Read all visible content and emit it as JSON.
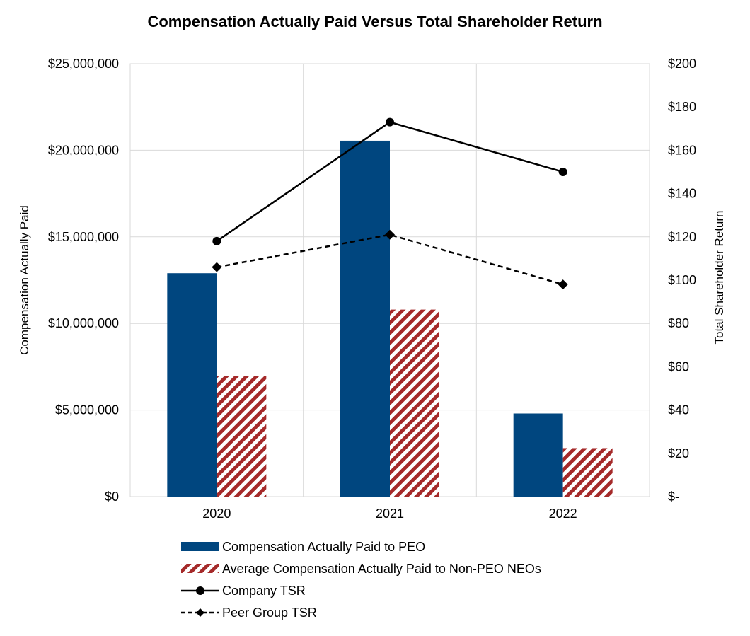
{
  "chart_data": {
    "type": "bar",
    "title": "Compensation Actually Paid Versus Total Shareholder Return",
    "categories": [
      "2020",
      "2021",
      "2022"
    ],
    "ylabel": "Compensation Actually Paid",
    "y2label": "Total Shareholder Return",
    "ylim": [
      0,
      25000000
    ],
    "y2lim": [
      0,
      200
    ],
    "yticks": [
      "$0",
      "$5,000,000",
      "$10,000,000",
      "$15,000,000",
      "$20,000,000",
      "$25,000,000"
    ],
    "y2ticks": [
      "$-",
      "$20",
      "$40",
      "$60",
      "$80",
      "$100",
      "$120",
      "$140",
      "$160",
      "$180",
      "$200"
    ],
    "grid": true,
    "legend_position": "bottom",
    "series": [
      {
        "name": "Compensation Actually Paid to PEO",
        "kind": "bar",
        "axis": "left",
        "color": "#00467F",
        "values": [
          12900000,
          20550000,
          4800000
        ]
      },
      {
        "name": "Average Compensation Actually Paid to Non-PEO NEOs",
        "kind": "bar-hatched",
        "axis": "left",
        "color": "#A52A2A",
        "values": [
          6950000,
          10800000,
          2800000
        ]
      },
      {
        "name": "Company TSR",
        "kind": "line",
        "axis": "right",
        "color": "#000000",
        "marker": "circle",
        "values": [
          118,
          173,
          150
        ]
      },
      {
        "name": "Peer Group TSR",
        "kind": "line-dashed",
        "axis": "right",
        "color": "#000000",
        "marker": "diamond",
        "values": [
          106,
          121,
          98
        ]
      }
    ]
  }
}
